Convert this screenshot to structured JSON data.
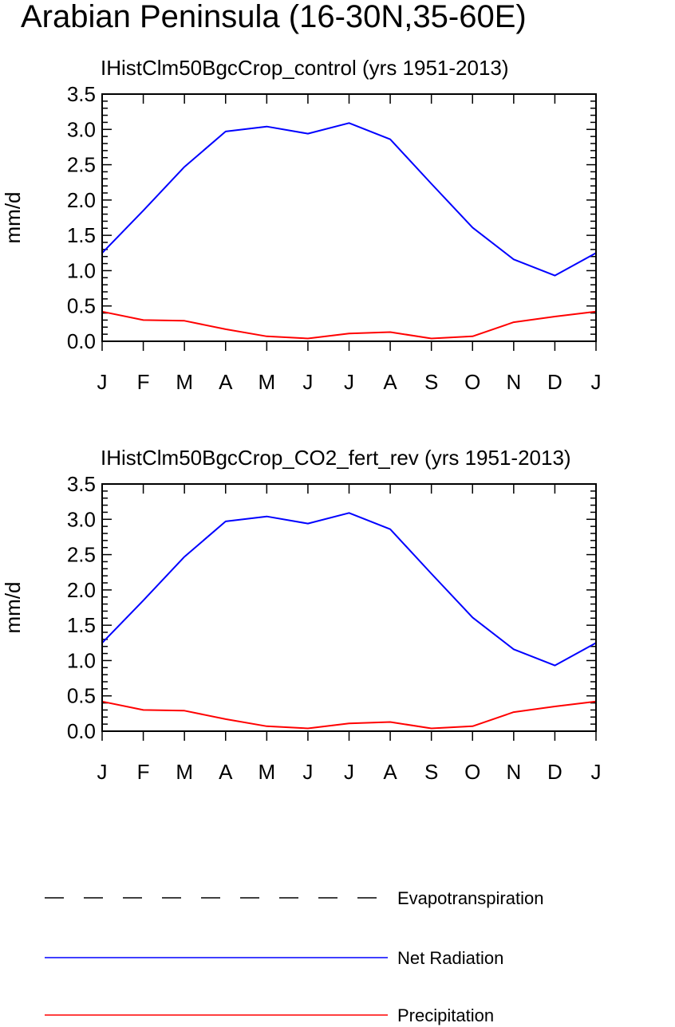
{
  "figure_title": "Arabian Peninsula (16-30N,35-60E)",
  "colors": {
    "Evapotranspiration": "#000000",
    "Net Radiation": "#0000ff",
    "Precipitation": "#ff0000"
  },
  "legend": {
    "placement": "bottom",
    "entries": [
      {
        "label": "Evapotranspiration",
        "color": "#000000",
        "style": "dashed"
      },
      {
        "label": "Net Radiation",
        "color": "#0000ff",
        "style": "solid"
      },
      {
        "label": "Precipitation",
        "color": "#ff0000",
        "style": "solid"
      }
    ]
  },
  "chart_data": [
    {
      "type": "line",
      "title": "IHistClm50BgcCrop_control (yrs 1951-2013)",
      "xlabel": "",
      "ylabel": "mm/d",
      "categories": [
        "J",
        "F",
        "M",
        "A",
        "M",
        "J",
        "J",
        "A",
        "S",
        "O",
        "N",
        "D",
        "J"
      ],
      "ylim": [
        0,
        3.5
      ],
      "yticks": [
        "0.0",
        "0.5",
        "1.0",
        "1.5",
        "2.0",
        "2.5",
        "3.0",
        "3.5"
      ],
      "grid": false,
      "series": [
        {
          "name": "Net Radiation",
          "color": "#0000ff",
          "values": [
            1.25,
            1.85,
            2.47,
            2.97,
            3.04,
            2.94,
            3.09,
            2.86,
            2.23,
            1.61,
            1.16,
            0.93,
            1.25
          ]
        },
        {
          "name": "Precipitation",
          "color": "#ff0000",
          "values": [
            0.42,
            0.3,
            0.29,
            0.17,
            0.07,
            0.04,
            0.11,
            0.13,
            0.04,
            0.07,
            0.27,
            0.35,
            0.42
          ]
        }
      ]
    },
    {
      "type": "line",
      "title": "IHistClm50BgcCrop_CO2_fert_rev (yrs 1951-2013)",
      "xlabel": "",
      "ylabel": "mm/d",
      "categories": [
        "J",
        "F",
        "M",
        "A",
        "M",
        "J",
        "J",
        "A",
        "S",
        "O",
        "N",
        "D",
        "J"
      ],
      "ylim": [
        0,
        3.5
      ],
      "yticks": [
        "0.0",
        "0.5",
        "1.0",
        "1.5",
        "2.0",
        "2.5",
        "3.0",
        "3.5"
      ],
      "grid": false,
      "series": [
        {
          "name": "Net Radiation",
          "color": "#0000ff",
          "values": [
            1.25,
            1.85,
            2.47,
            2.97,
            3.04,
            2.94,
            3.09,
            2.86,
            2.23,
            1.61,
            1.16,
            0.93,
            1.25
          ]
        },
        {
          "name": "Precipitation",
          "color": "#ff0000",
          "values": [
            0.42,
            0.3,
            0.29,
            0.17,
            0.07,
            0.04,
            0.11,
            0.13,
            0.04,
            0.07,
            0.27,
            0.35,
            0.42
          ]
        }
      ]
    }
  ]
}
